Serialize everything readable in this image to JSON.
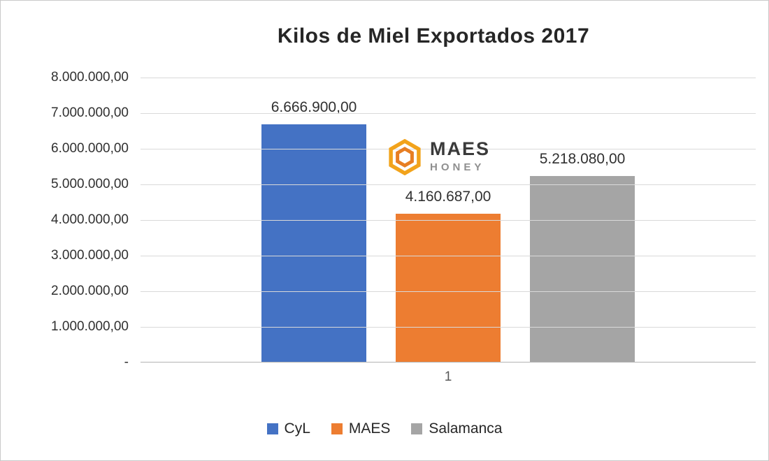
{
  "chart_data": {
    "type": "bar",
    "title": "Kilos de Miel Exportados 2017",
    "categories": [
      "1"
    ],
    "series": [
      {
        "name": "CyL",
        "color": "#4472C4",
        "values": [
          6666900
        ]
      },
      {
        "name": "MAES",
        "color": "#ED7D31",
        "values": [
          4160687
        ]
      },
      {
        "name": "Salamanca",
        "color": "#A5A5A5",
        "values": [
          5218080
        ]
      }
    ],
    "data_labels": [
      "6.666.900,00",
      "4.160.687,00",
      "5.218.080,00"
    ],
    "ylim": [
      0,
      8000000
    ],
    "yticks": [
      "8.000.000,00",
      "7.000.000,00",
      "6.000.000,00",
      "5.000.000,00",
      "4.000.000,00",
      "3.000.000,00",
      "2.000.000,00",
      "1.000.000,00",
      "-"
    ],
    "grid": "horizontal",
    "legend_position": "bottom"
  },
  "logo": {
    "brand": "MAES",
    "sub": "HONEY",
    "icon_outer_color": "#F2A31B",
    "icon_inner_color": "#E77E23"
  }
}
